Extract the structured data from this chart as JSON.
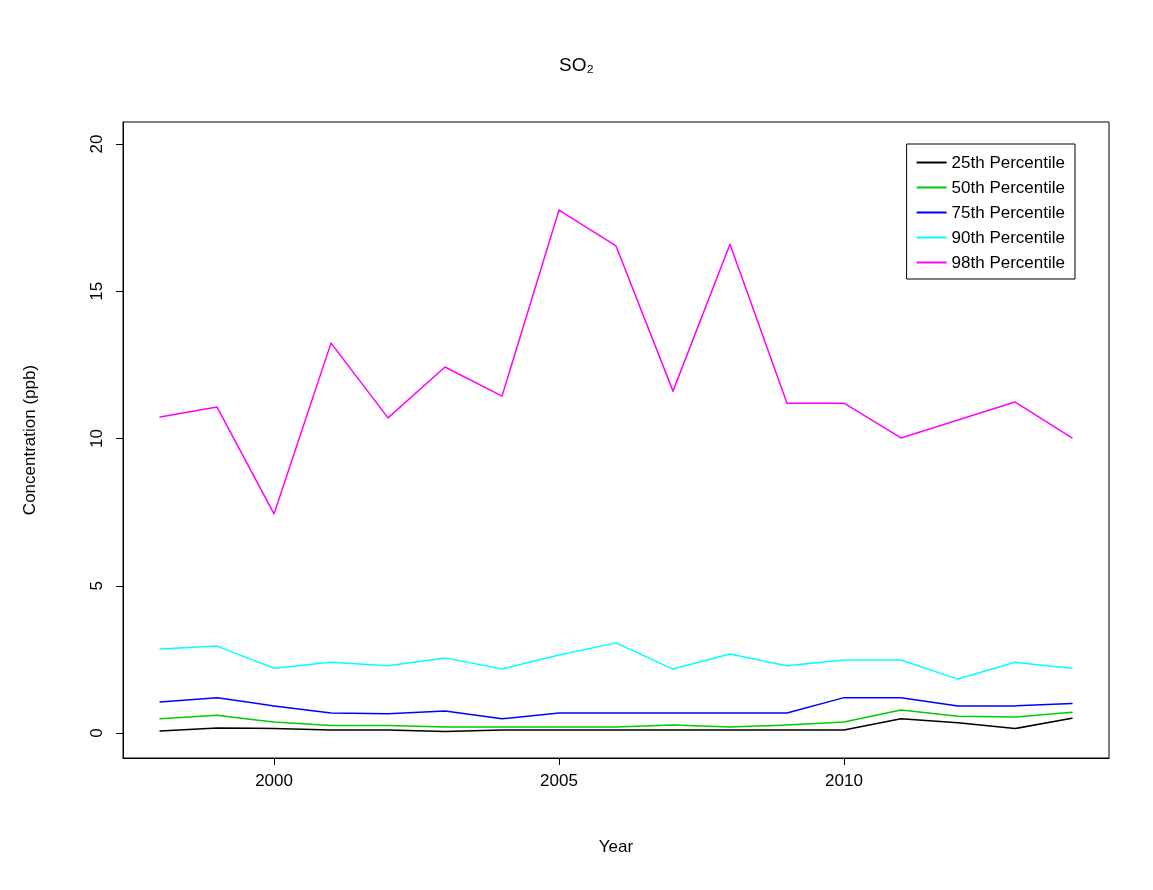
{
  "chart_data": {
    "type": "line",
    "title": "SO₂",
    "xlabel": "Year",
    "ylabel": "Concentration (ppb)",
    "x": [
      1998,
      1999,
      2000,
      2001,
      2002,
      2003,
      2004,
      2005,
      2006,
      2007,
      2008,
      2009,
      2010,
      2011,
      2012,
      2013,
      2014
    ],
    "series": [
      {
        "name": "25th Percentile",
        "color": "#000000",
        "values": [
          0.07,
          0.17,
          0.15,
          0.1,
          0.1,
          0.05,
          0.1,
          0.1,
          0.1,
          0.1,
          0.1,
          0.1,
          0.1,
          0.48,
          0.35,
          0.15,
          0.5
        ]
      },
      {
        "name": "50th Percentile",
        "color": "#00cd00",
        "values": [
          0.48,
          0.6,
          0.37,
          0.25,
          0.25,
          0.2,
          0.2,
          0.2,
          0.2,
          0.27,
          0.2,
          0.27,
          0.37,
          0.78,
          0.57,
          0.54,
          0.7
        ]
      },
      {
        "name": "75th Percentile",
        "color": "#0000ff",
        "values": [
          1.05,
          1.2,
          0.92,
          0.68,
          0.65,
          0.75,
          0.48,
          0.68,
          0.68,
          0.68,
          0.68,
          0.68,
          1.2,
          1.2,
          0.92,
          0.92,
          1.0
        ]
      },
      {
        "name": "90th Percentile",
        "color": "#00ffff",
        "values": [
          2.85,
          2.95,
          2.2,
          2.4,
          2.28,
          2.55,
          2.17,
          2.65,
          3.06,
          2.17,
          2.68,
          2.28,
          2.48,
          2.48,
          1.83,
          2.4,
          2.2
        ]
      },
      {
        "name": "98th Percentile",
        "color": "#ff00ff",
        "values": [
          10.73,
          11.07,
          7.44,
          13.24,
          10.7,
          12.43,
          11.44,
          17.76,
          16.54,
          11.61,
          16.6,
          11.2,
          11.2,
          10.02,
          10.63,
          11.24,
          10.02
        ]
      }
    ],
    "xlim": [
      1997.35,
      2014.65
    ],
    "xticks": [
      2000,
      2005,
      2010
    ],
    "ylim": [
      -0.85,
      20.75
    ],
    "yticks": [
      0,
      5,
      10,
      15,
      20
    ],
    "grid": false,
    "legend": "top right",
    "marker": "none",
    "line_style": "solid"
  }
}
